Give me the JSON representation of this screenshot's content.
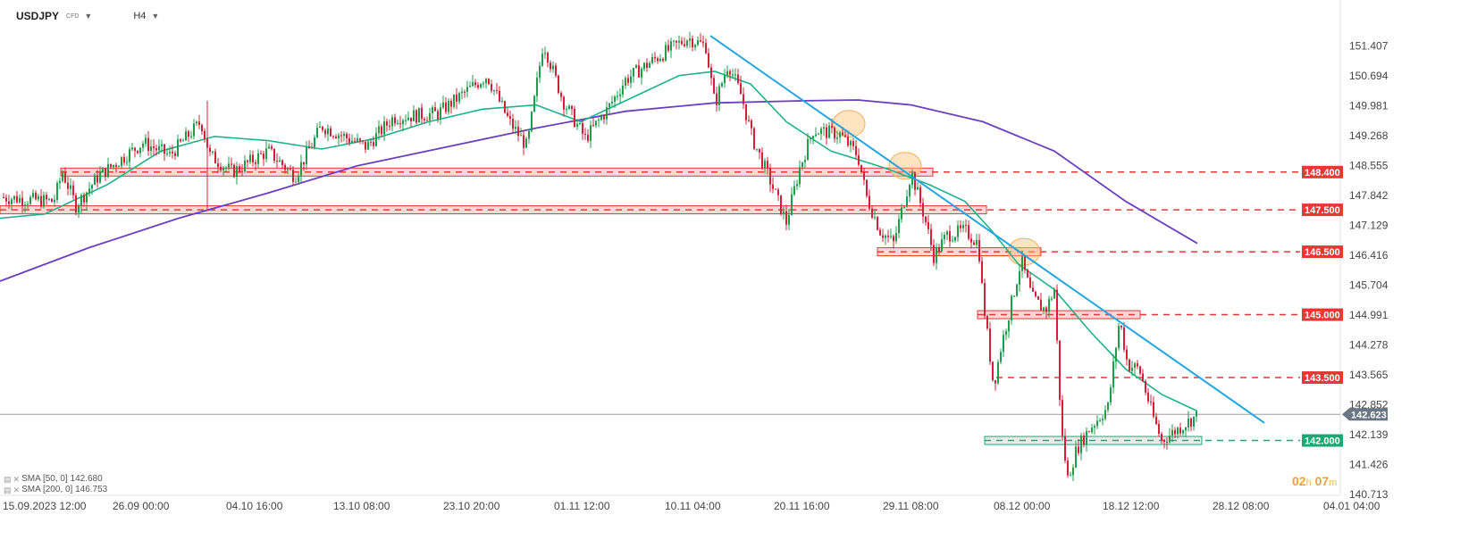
{
  "header": {
    "symbol": "USDJPY",
    "instrument_type": "CFD",
    "timeframe": "H4"
  },
  "legend": [
    {
      "label": "SMA [50, 0] 142.680",
      "color": "#1db38a"
    },
    {
      "label": "SMA [200, 0] 146.753",
      "color": "#6a3fc0"
    }
  ],
  "countdown": {
    "hours": "02",
    "h_unit": "h",
    "minutes": "07",
    "m_unit": "m"
  },
  "chart_data": {
    "type": "candlestick",
    "title": "",
    "ylim": [
      140.5,
      152.1
    ],
    "y_ticks": [
      "151.407",
      "150.694",
      "149.981",
      "149.268",
      "148.555",
      "147.842",
      "147.129",
      "146.416",
      "145.704",
      "144.991",
      "144.278",
      "143.565",
      "142.852",
      "142.139",
      "141.426",
      "140.713"
    ],
    "x_ticks": [
      "15.09.2023 12:00",
      "26.09 00:00",
      "04.10 16:00",
      "13.10 08:00",
      "23.10 20:00",
      "01.11 12:00",
      "10.11 04:00",
      "20.11 16:00",
      "29.11 08:00",
      "08.12 00:00",
      "18.12 12:00",
      "28.12 08:00",
      "04.01 04:00"
    ],
    "current_price": {
      "value": 142.623,
      "label": "142.623",
      "color": "#6b7684"
    },
    "price_path": [
      [
        0,
        147.8
      ],
      [
        60,
        147.7
      ],
      [
        70,
        148.4
      ],
      [
        85,
        147.6
      ],
      [
        110,
        148.3
      ],
      [
        160,
        149.1
      ],
      [
        190,
        148.8
      ],
      [
        225,
        149.6
      ],
      [
        235,
        148.8
      ],
      [
        260,
        148.4
      ],
      [
        300,
        148.9
      ],
      [
        330,
        148.3
      ],
      [
        360,
        149.5
      ],
      [
        410,
        149.0
      ],
      [
        440,
        149.7
      ],
      [
        490,
        149.8
      ],
      [
        545,
        150.7
      ],
      [
        570,
        149.6
      ],
      [
        590,
        149.0
      ],
      [
        608,
        151.5
      ],
      [
        630,
        150.1
      ],
      [
        655,
        149.2
      ],
      [
        680,
        149.9
      ],
      [
        700,
        150.6
      ],
      [
        740,
        151.2
      ],
      [
        770,
        151.6
      ],
      [
        790,
        151.4
      ],
      [
        800,
        150.0
      ],
      [
        815,
        151.0
      ],
      [
        830,
        150.2
      ],
      [
        842,
        149.2
      ],
      [
        860,
        148.3
      ],
      [
        880,
        147.2
      ],
      [
        895,
        148.5
      ],
      [
        910,
        149.4
      ],
      [
        940,
        149.3
      ],
      [
        960,
        148.8
      ],
      [
        970,
        147.8
      ],
      [
        985,
        147.0
      ],
      [
        1000,
        146.7
      ],
      [
        1020,
        148.4
      ],
      [
        1035,
        147.3
      ],
      [
        1045,
        146.4
      ],
      [
        1060,
        146.9
      ],
      [
        1080,
        147.0
      ],
      [
        1095,
        146.7
      ],
      [
        1100,
        145.4
      ],
      [
        1112,
        143.3
      ],
      [
        1120,
        144.2
      ],
      [
        1130,
        145.1
      ],
      [
        1143,
        146.3
      ],
      [
        1155,
        145.4
      ],
      [
        1170,
        145.1
      ],
      [
        1180,
        145.6
      ],
      [
        1188,
        142.2
      ],
      [
        1195,
        141.1
      ],
      [
        1205,
        141.8
      ],
      [
        1220,
        142.3
      ],
      [
        1240,
        142.8
      ],
      [
        1253,
        144.9
      ],
      [
        1262,
        143.8
      ],
      [
        1275,
        143.7
      ],
      [
        1290,
        142.6
      ],
      [
        1300,
        142.0
      ],
      [
        1320,
        142.3
      ],
      [
        1340,
        142.6
      ]
    ],
    "sma50_path": [
      [
        0,
        147.3
      ],
      [
        50,
        147.4
      ],
      [
        120,
        148.1
      ],
      [
        180,
        148.9
      ],
      [
        240,
        149.25
      ],
      [
        300,
        149.15
      ],
      [
        360,
        148.95
      ],
      [
        420,
        149.2
      ],
      [
        480,
        149.6
      ],
      [
        540,
        149.9
      ],
      [
        600,
        150.0
      ],
      [
        650,
        149.6
      ],
      [
        700,
        150.1
      ],
      [
        760,
        150.7
      ],
      [
        800,
        150.8
      ],
      [
        840,
        150.5
      ],
      [
        880,
        149.6
      ],
      [
        930,
        148.9
      ],
      [
        990,
        148.5
      ],
      [
        1040,
        148.1
      ],
      [
        1080,
        147.7
      ],
      [
        1110,
        147.0
      ],
      [
        1140,
        146.2
      ],
      [
        1180,
        145.6
      ],
      [
        1220,
        144.6
      ],
      [
        1260,
        143.7
      ],
      [
        1300,
        143.1
      ],
      [
        1340,
        142.7
      ]
    ],
    "sma200_path": [
      [
        0,
        145.8
      ],
      [
        100,
        146.6
      ],
      [
        200,
        147.3
      ],
      [
        300,
        147.9
      ],
      [
        400,
        148.55
      ],
      [
        500,
        149.0
      ],
      [
        600,
        149.45
      ],
      [
        700,
        149.85
      ],
      [
        800,
        150.05
      ],
      [
        900,
        150.1
      ],
      [
        960,
        150.12
      ],
      [
        1020,
        150.0
      ],
      [
        1100,
        149.6
      ],
      [
        1180,
        148.9
      ],
      [
        1260,
        147.7
      ],
      [
        1340,
        146.7
      ]
    ],
    "trendline": {
      "from": [
        795,
        151.65
      ],
      "to": [
        1415,
        142.42
      ],
      "color": "#21a6e0"
    },
    "levels": [
      {
        "value": 148.4,
        "label": "148.400",
        "color": "#e53935",
        "zone_x": [
          68,
          1044
        ]
      },
      {
        "value": 147.5,
        "label": "147.500",
        "color": "#e53935",
        "zone_x": [
          0,
          1104
        ]
      },
      {
        "value": 146.5,
        "label": "146.500",
        "color": "#e53935",
        "zone_x": [
          982,
          1165
        ]
      },
      {
        "value": 145.0,
        "label": "145.000",
        "color": "#e53935",
        "zone_x": [
          1094,
          1276
        ]
      },
      {
        "value": 143.5,
        "label": "143.500",
        "color": "#e53935",
        "zone_x": []
      },
      {
        "value": 142.0,
        "label": "142.000",
        "color": "#19a974",
        "zone_x": [
          1102,
          1345
        ]
      }
    ],
    "highlight_circles": [
      [
        950,
        149.55
      ],
      [
        1013,
        148.55
      ],
      [
        1146,
        146.5
      ]
    ],
    "colors": {
      "up": "#1f9d4c",
      "down": "#d2203a",
      "sma50": "#1db38a",
      "sma200": "#6a3fc0"
    }
  }
}
